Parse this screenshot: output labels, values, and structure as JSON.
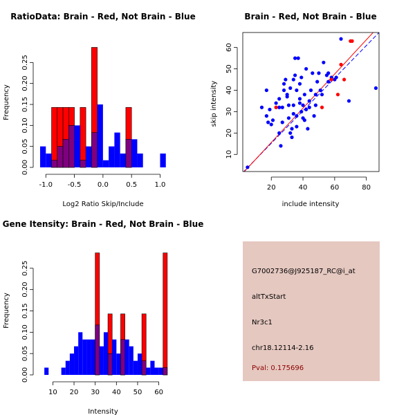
{
  "colors": {
    "brain": "#ff0000",
    "not_brain": "#0000ff",
    "overlap": "#7f007f",
    "info_bg": "#e5c8c0",
    "pval": "#8b0000"
  },
  "chart_data": [
    {
      "type": "bar",
      "id": "ratio-histogram",
      "title": "RatioData: Brain - Red, Not Brain - Blue",
      "xlabel": "Log2 Ratio Skip/Include",
      "ylabel": "Frequency",
      "xlim": [
        -1.1,
        1.2
      ],
      "ylim": [
        0,
        0.3
      ],
      "xticks": [
        -1.0,
        -0.5,
        0.0,
        0.5,
        1.0
      ],
      "xtick_labels": [
        "-1.0",
        "-0.5",
        "0.0",
        "0.5",
        "1.0"
      ],
      "yticks": [
        0.0,
        0.05,
        0.1,
        0.15,
        0.2,
        0.25
      ],
      "ytick_labels": [
        "0.00",
        "0.05",
        "0.10",
        "0.15",
        "0.20",
        "0.25"
      ],
      "bin_width": 0.1,
      "series": [
        {
          "name": "Not Brain",
          "color": "blue",
          "bins": [
            -1.05,
            -0.95,
            -0.85,
            -0.75,
            -0.65,
            -0.55,
            -0.45,
            -0.35,
            -0.25,
            -0.15,
            -0.05,
            0.05,
            0.15,
            0.25,
            0.35,
            0.45,
            0.55,
            0.65,
            1.05
          ],
          "values": [
            0.05,
            0.033,
            0.017,
            0.05,
            0.067,
            0.1,
            0.1,
            0.017,
            0.05,
            0.083,
            0.15,
            0.017,
            0.05,
            0.083,
            0.033,
            0.067,
            0.067,
            0.033,
            0.033
          ]
        },
        {
          "name": "Brain",
          "color": "red",
          "bins": [
            -0.85,
            -0.75,
            -0.65,
            -0.55,
            -0.45,
            -0.35,
            -0.25,
            -0.15,
            -0.05,
            0.05,
            0.15,
            0.25,
            0.35,
            0.45,
            0.55
          ],
          "values": [
            0.143,
            0.143,
            0.143,
            0.143,
            0.0,
            0.143,
            0.0,
            0.286,
            0.0,
            0.0,
            0.0,
            0.0,
            0.0,
            0.143,
            0.0
          ]
        }
      ]
    },
    {
      "type": "scatter",
      "id": "intensity-scatter",
      "title": "Brain - Red, Not Brain - Blue",
      "xlabel": "include intensity",
      "ylabel": "skip intensity",
      "xlim": [
        2,
        88
      ],
      "ylim": [
        2,
        67
      ],
      "xticks": [
        20,
        40,
        60,
        80
      ],
      "xtick_labels": [
        "20",
        "40",
        "60",
        "80"
      ],
      "yticks": [
        10,
        20,
        30,
        40,
        50,
        60
      ],
      "ytick_labels": [
        "10",
        "20",
        "30",
        "40",
        "50",
        "60"
      ],
      "series": [
        {
          "name": "Not Brain",
          "color": "blue",
          "points": [
            [
              5,
              4
            ],
            [
              14,
              32
            ],
            [
              17,
              28
            ],
            [
              18,
              25
            ],
            [
              17,
              40
            ],
            [
              19,
              31
            ],
            [
              20,
              24
            ],
            [
              21,
              26
            ],
            [
              23,
              34
            ],
            [
              25,
              32
            ],
            [
              25,
              36
            ],
            [
              25,
              20
            ],
            [
              26,
              14
            ],
            [
              27,
              25
            ],
            [
              27,
              32
            ],
            [
              28,
              40
            ],
            [
              28,
              43
            ],
            [
              29,
              45
            ],
            [
              30,
              37
            ],
            [
              30,
              38
            ],
            [
              31,
              33
            ],
            [
              31,
              27
            ],
            [
              32,
              41
            ],
            [
              32,
              20
            ],
            [
              33,
              22
            ],
            [
              33,
              18
            ],
            [
              34,
              29
            ],
            [
              34,
              33
            ],
            [
              34,
              45
            ],
            [
              35,
              55
            ],
            [
              35,
              47
            ],
            [
              36,
              28
            ],
            [
              36,
              23
            ],
            [
              36,
              40
            ],
            [
              37,
              55
            ],
            [
              38,
              34
            ],
            [
              38,
              36
            ],
            [
              38,
              43
            ],
            [
              39,
              30
            ],
            [
              39,
              46
            ],
            [
              40,
              27
            ],
            [
              40,
              33
            ],
            [
              41,
              26
            ],
            [
              41,
              38
            ],
            [
              42,
              50
            ],
            [
              42,
              31
            ],
            [
              43,
              22
            ],
            [
              44,
              35
            ],
            [
              44,
              32
            ],
            [
              45,
              40
            ],
            [
              46,
              48
            ],
            [
              47,
              28
            ],
            [
              48,
              33
            ],
            [
              48,
              38
            ],
            [
              49,
              44
            ],
            [
              50,
              48
            ],
            [
              51,
              40
            ],
            [
              52,
              38
            ],
            [
              53,
              53
            ],
            [
              55,
              47
            ],
            [
              56,
              48
            ],
            [
              56,
              44
            ],
            [
              58,
              46
            ],
            [
              60,
              45
            ],
            [
              61,
              46
            ],
            [
              64,
              64
            ],
            [
              69,
              35
            ],
            [
              86,
              41
            ]
          ]
        },
        {
          "name": "Brain",
          "color": "red",
          "points": [
            [
              23,
              32
            ],
            [
              52,
              32
            ],
            [
              58,
              45
            ],
            [
              62,
              38
            ],
            [
              64,
              52
            ],
            [
              66,
              45
            ],
            [
              70,
              63
            ],
            [
              71,
              63
            ]
          ]
        }
      ],
      "fit_lines": [
        {
          "name": "Not Brain fit",
          "color": "blue",
          "style": "dashed",
          "from": [
            2,
            1.5
          ],
          "to": [
            88,
            67
          ]
        },
        {
          "name": "Brain fit",
          "color": "red",
          "style": "solid",
          "from": [
            2,
            1.2
          ],
          "to": [
            88,
            70
          ]
        }
      ]
    },
    {
      "type": "bar",
      "id": "gene-intensity-histogram",
      "title": "Gene Itensity: Brain - Red, Not Brain - Blue",
      "xlabel": "Intensity",
      "ylabel": "Frequency",
      "xlim": [
        4,
        66
      ],
      "ylim": [
        0,
        0.3
      ],
      "xticks": [
        10,
        20,
        30,
        40,
        50,
        60
      ],
      "xtick_labels": [
        "10",
        "20",
        "30",
        "40",
        "50",
        "60"
      ],
      "yticks": [
        0.0,
        0.05,
        0.1,
        0.15,
        0.2,
        0.25
      ],
      "ytick_labels": [
        "0.00",
        "0.05",
        "0.10",
        "0.15",
        "0.20",
        "0.25"
      ],
      "bin_width": 2,
      "series": [
        {
          "name": "Not Brain",
          "color": "blue",
          "bins": [
            7,
            15,
            17,
            19,
            21,
            23,
            25,
            27,
            29,
            31,
            33,
            35,
            37,
            39,
            41,
            43,
            45,
            47,
            49,
            51,
            53,
            55,
            57,
            59,
            61,
            63
          ],
          "values": [
            0.017,
            0.017,
            0.033,
            0.05,
            0.067,
            0.1,
            0.083,
            0.083,
            0.083,
            0.117,
            0.067,
            0.1,
            0.05,
            0.083,
            0.05,
            0.083,
            0.083,
            0.067,
            0.033,
            0.05,
            0.033,
            0.017,
            0.033,
            0.017,
            0.017,
            0.017
          ]
        },
        {
          "name": "Brain",
          "color": "red",
          "bins": [
            31,
            33,
            35,
            37,
            39,
            41,
            43,
            45,
            47,
            49,
            51,
            53,
            55,
            57,
            59,
            61,
            63
          ],
          "values": [
            0.286,
            0.0,
            0.0,
            0.143,
            0.0,
            0.0,
            0.143,
            0.0,
            0.0,
            0.0,
            0.0,
            0.143,
            0.0,
            0.0,
            0.0,
            0.0,
            0.286
          ]
        }
      ]
    }
  ],
  "info": {
    "probe_id": "G7002736@J925187_RC@i_at",
    "event_type": "altTxStart",
    "gene": "Nr3c1",
    "location": "chr18.12114-2.16",
    "pval": "Pval: 0.175696"
  }
}
